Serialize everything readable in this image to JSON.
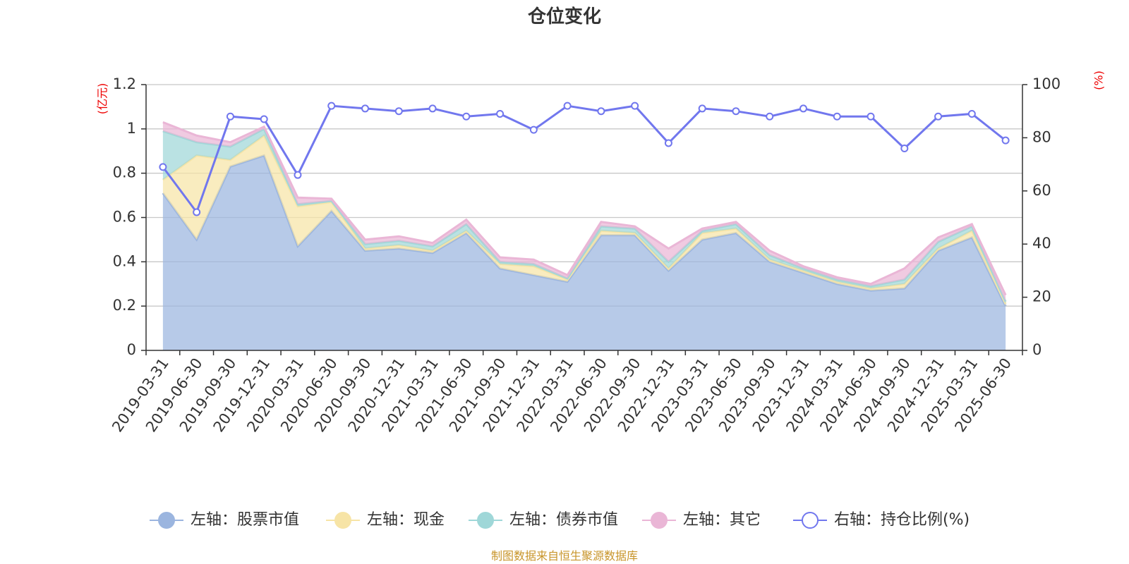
{
  "chart_data": {
    "type": "area",
    "title": "仓位变化",
    "left_unit": "(亿元)",
    "right_unit": "(%)",
    "source": "制图数据来自恒生聚源数据库",
    "x": [
      "2019-03-31",
      "2019-06-30",
      "2019-09-30",
      "2019-12-31",
      "2020-03-31",
      "2020-06-30",
      "2020-09-30",
      "2020-12-31",
      "2021-03-31",
      "2021-06-30",
      "2021-09-30",
      "2021-12-31",
      "2022-03-31",
      "2022-06-30",
      "2022-09-30",
      "2022-12-31",
      "2023-03-31",
      "2023-06-30",
      "2023-09-30",
      "2023-12-31",
      "2024-03-31",
      "2024-06-30",
      "2024-09-30",
      "2024-12-31",
      "2025-03-31",
      "2025-06-30"
    ],
    "left_ylim": [
      0,
      1.2
    ],
    "left_ticks": [
      "0",
      "0.2",
      "0.4",
      "0.6",
      "0.8",
      "1",
      "1.2"
    ],
    "right_ylim": [
      0,
      100
    ],
    "right_ticks": [
      "0",
      "20",
      "40",
      "60",
      "80",
      "100"
    ],
    "stacked_series": [
      {
        "name": "左轴：股票市值",
        "axis": "left",
        "color": "#9bb5df",
        "values": [
          0.71,
          0.5,
          0.83,
          0.88,
          0.47,
          0.63,
          0.45,
          0.46,
          0.44,
          0.53,
          0.37,
          0.34,
          0.31,
          0.52,
          0.52,
          0.36,
          0.5,
          0.53,
          0.4,
          0.35,
          0.3,
          0.27,
          0.28,
          0.45,
          0.51,
          0.2
        ]
      },
      {
        "name": "左轴：现金",
        "axis": "left",
        "color": "#f7e4a6",
        "values": [
          0.06,
          0.38,
          0.03,
          0.09,
          0.18,
          0.04,
          0.01,
          0.015,
          0.01,
          0.01,
          0.02,
          0.04,
          0.01,
          0.02,
          0.01,
          0.01,
          0.03,
          0.02,
          0.01,
          0.01,
          0.01,
          0.01,
          0.02,
          0.01,
          0.03,
          0.01
        ]
      },
      {
        "name": "左轴：债券市值",
        "axis": "left",
        "color": "#9fd7d8",
        "values": [
          0.22,
          0.06,
          0.06,
          0.03,
          0.01,
          0.005,
          0.02,
          0.02,
          0.02,
          0.03,
          0.01,
          0.01,
          0.005,
          0.02,
          0.02,
          0.03,
          0.01,
          0.02,
          0.02,
          0.01,
          0.01,
          0.01,
          0.02,
          0.03,
          0.02,
          0.01
        ]
      },
      {
        "name": "左轴：其它",
        "axis": "left",
        "color": "#eab6d6",
        "values": [
          0.04,
          0.03,
          0.02,
          0.01,
          0.03,
          0.01,
          0.02,
          0.02,
          0.015,
          0.02,
          0.02,
          0.02,
          0.015,
          0.02,
          0.01,
          0.06,
          0.01,
          0.01,
          0.02,
          0.01,
          0.01,
          0.01,
          0.05,
          0.02,
          0.01,
          0.03
        ]
      }
    ],
    "line_series": {
      "name": "右轴：持仓比例(%)",
      "axis": "right",
      "color": "#7177ee",
      "values": [
        69,
        52,
        88,
        87,
        66,
        92,
        91,
        90,
        91,
        88,
        89,
        83,
        92,
        90,
        92,
        78,
        91,
        90,
        88,
        91,
        88,
        88,
        76,
        88,
        89,
        79
      ]
    },
    "legend_placement": "bottom",
    "grid": true
  }
}
